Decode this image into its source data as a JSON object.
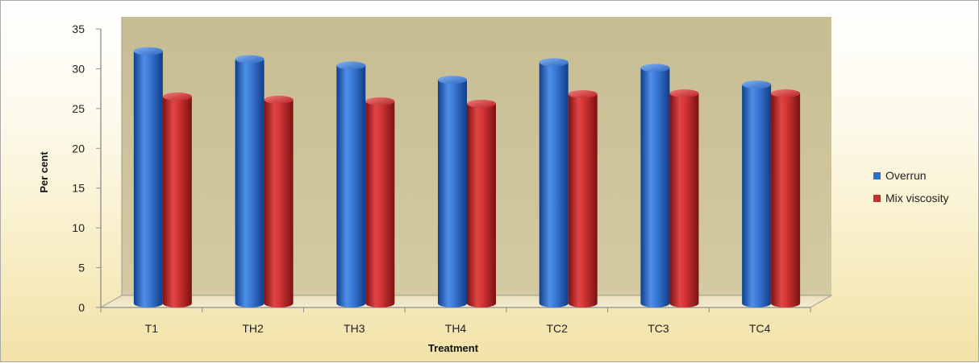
{
  "chart_data": {
    "type": "bar",
    "title": "",
    "xlabel": "Treatment",
    "ylabel": "Per cent",
    "categories": [
      "T1",
      "TH2",
      "TH3",
      "TH4",
      "TC2",
      "TC3",
      "TC4"
    ],
    "series": [
      {
        "name": "Overrun",
        "values": [
          31.4,
          30.4,
          29.6,
          27.8,
          30.0,
          29.3,
          27.2
        ],
        "color": "#2f6fca"
      },
      {
        "name": "Mix viscosity",
        "values": [
          25.7,
          25.3,
          25.1,
          24.8,
          26.0,
          26.1,
          26.1
        ],
        "color": "#c62e2e"
      }
    ],
    "ylim": [
      0,
      35
    ],
    "yticks": [
      "0",
      "5",
      "10",
      "15",
      "20",
      "25",
      "30",
      "35"
    ],
    "grid": false,
    "legend_position": "right",
    "plot_background": "#cfc59a",
    "style": "3d-cylinder"
  }
}
